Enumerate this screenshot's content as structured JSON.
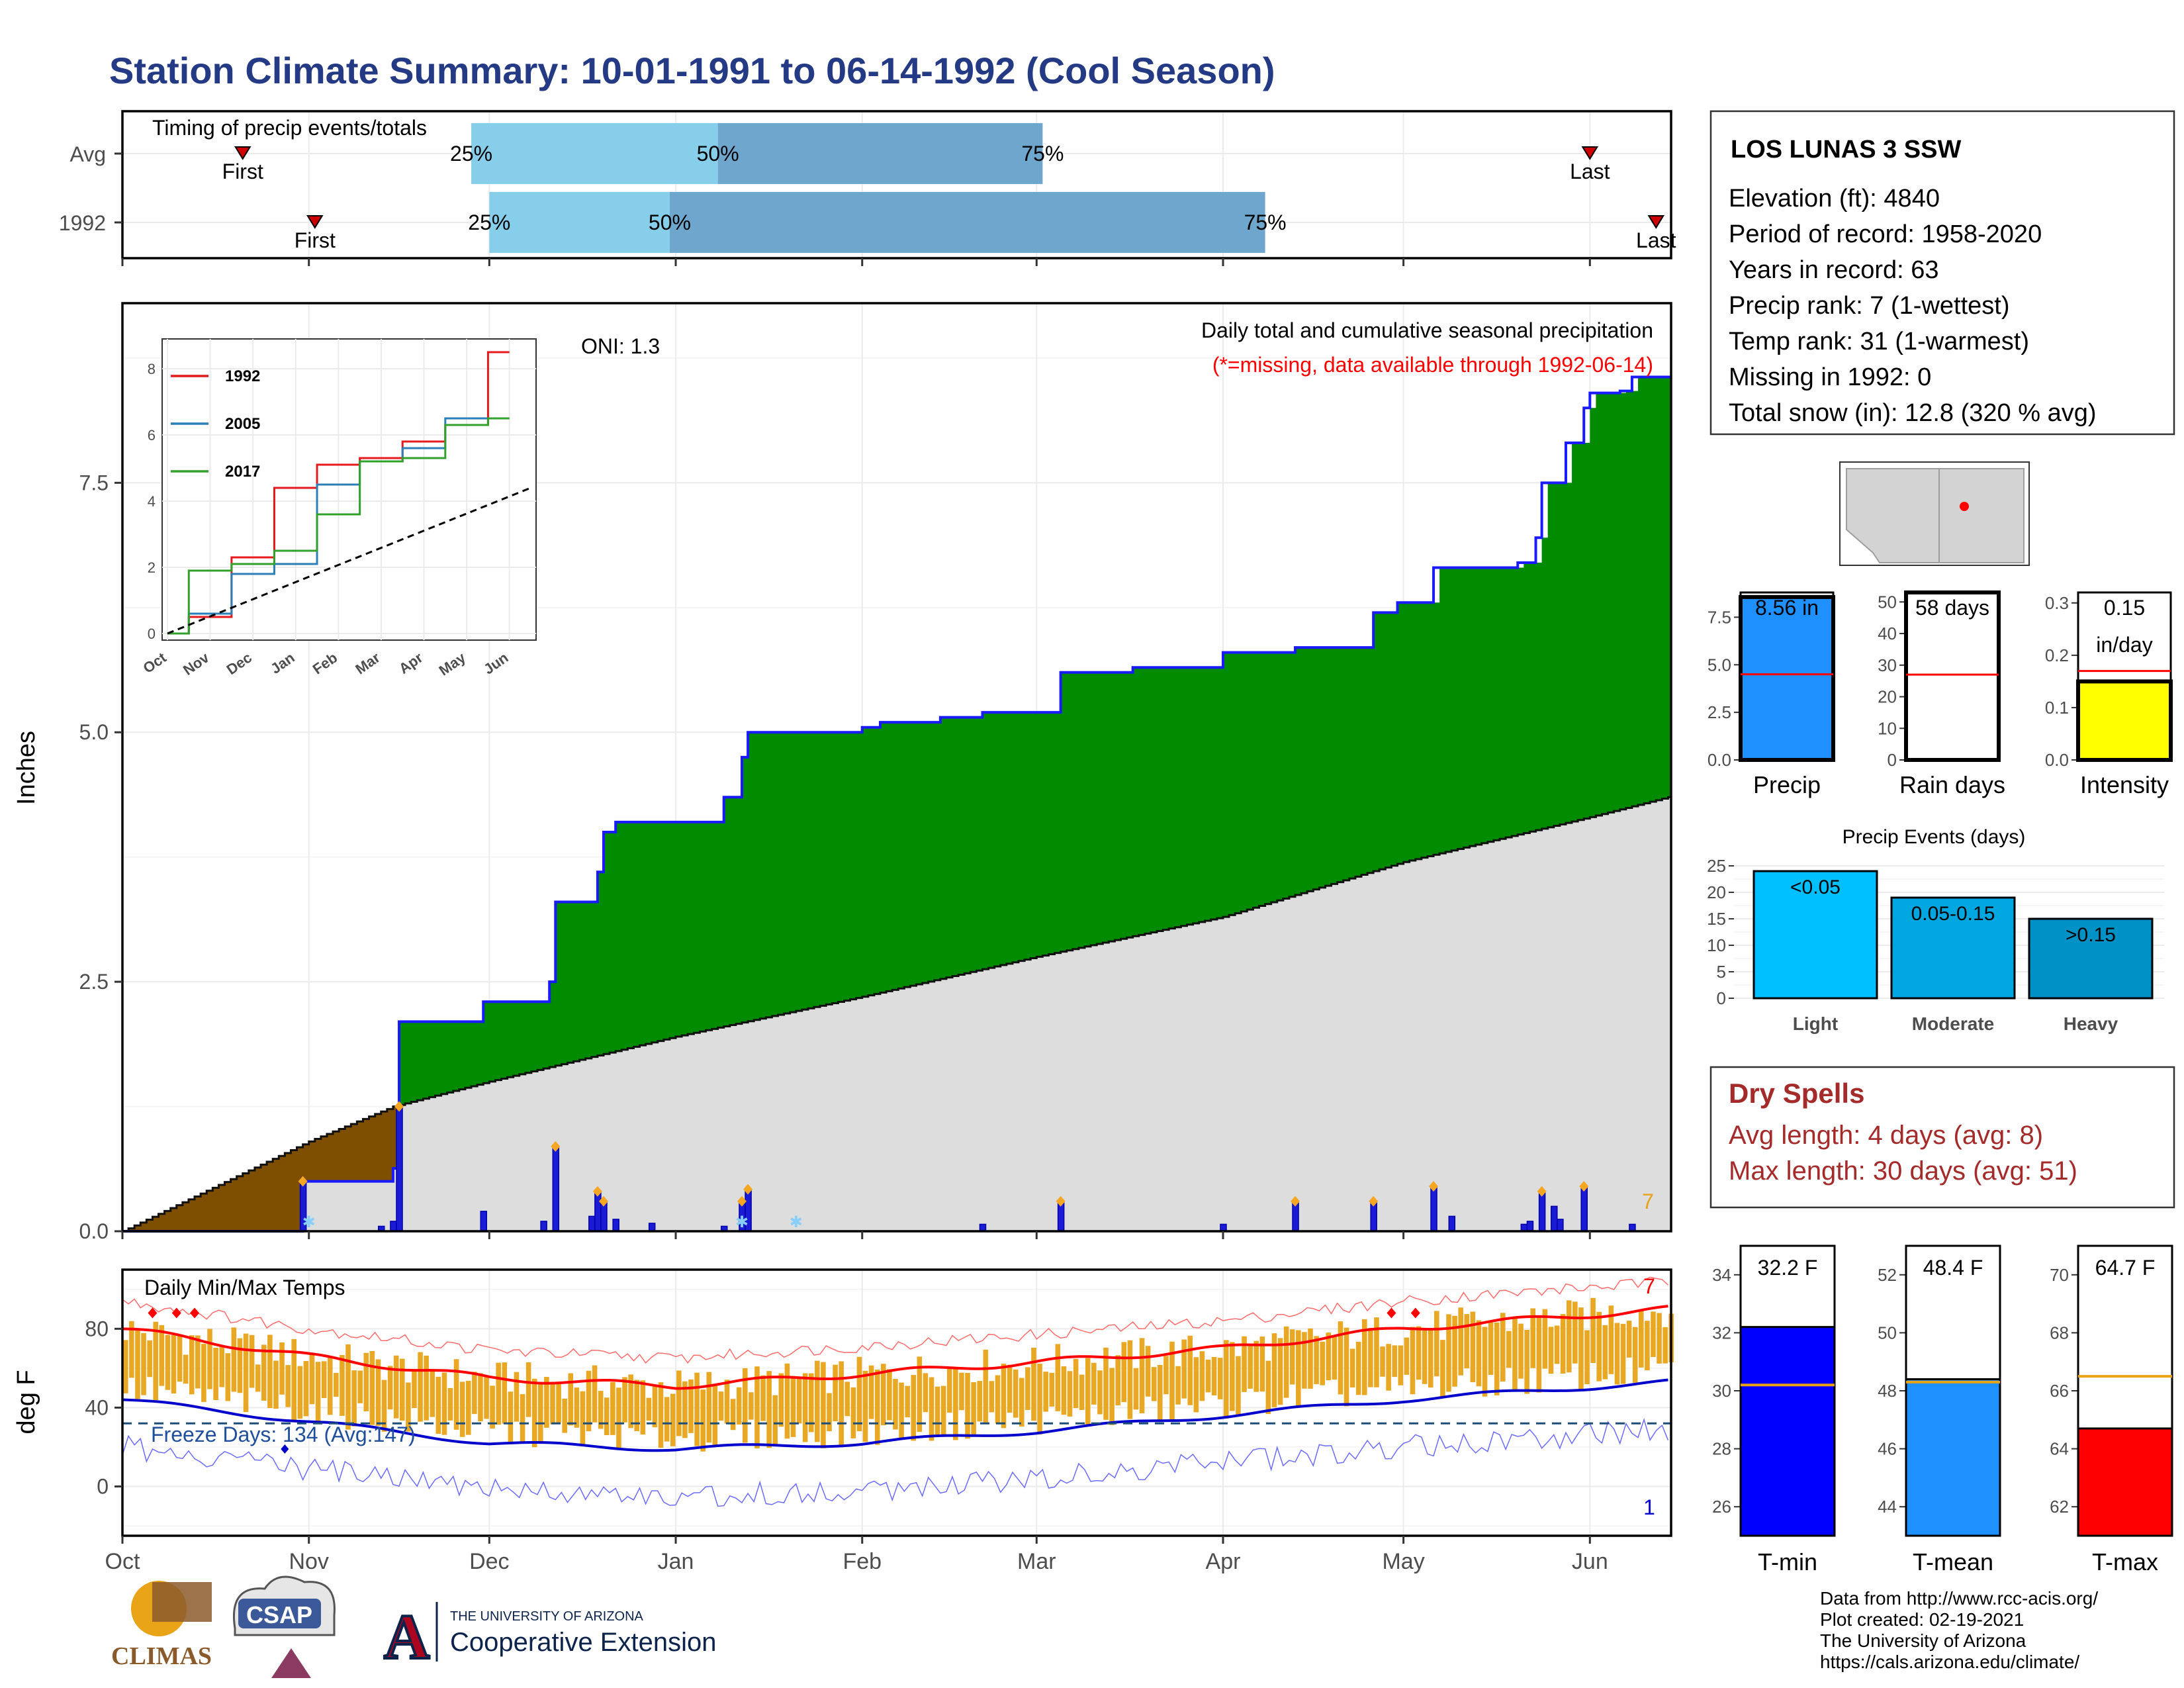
{
  "title": "Station Climate Summary: 10-01-1991 to 06-14-1992 (Cool Season)",
  "colors": {
    "title": "#253a85",
    "green": "#008b00",
    "brown": "#7f4f00",
    "grey": "#dddddd",
    "blue_bar": "#1b1bd6",
    "pale_blue": "#87ceeb",
    "mid_blue": "#6ea6cd",
    "orange": "#e8a317",
    "red": "#ff0000",
    "dry_text": "#a52a2a"
  },
  "timing": {
    "label": "Timing of precip events/totals",
    "rows": [
      {
        "label": "Avg",
        "first": "First",
        "last": "Last",
        "q25": "25%",
        "q50": "50%",
        "q75": "75%"
      },
      {
        "label": "1992",
        "first": "First",
        "last": "Last",
        "q25": "25%",
        "q50": "50%",
        "q75": "75%"
      }
    ]
  },
  "precip_panel": {
    "ylabel": "Inches",
    "oni": "ONI: 1.3",
    "heading": "Daily total and cumulative seasonal precipitation",
    "missing_note": "(*=missing, data available through 1992-06-14)",
    "corner_count": "7",
    "y_ticks": [
      "0.0",
      "2.5",
      "5.0",
      "7.5"
    ]
  },
  "inset": {
    "y_ticks": [
      "0",
      "2",
      "4",
      "6",
      "8"
    ],
    "x_ticks": [
      "Oct",
      "Nov",
      "Dec",
      "Jan",
      "Feb",
      "Mar",
      "Apr",
      "May",
      "Jun"
    ],
    "legend": [
      "1992",
      "2005",
      "2017"
    ]
  },
  "temp_panel": {
    "ylabel": "deg F",
    "label": "Daily Min/Max Temps",
    "freeze": "Freeze Days: 134 (Avg:147)",
    "corner_top": "7",
    "corner_bottom": "1",
    "y_ticks": [
      "0",
      "40",
      "80"
    ]
  },
  "x_months": [
    "Oct",
    "Nov",
    "Dec",
    "Jan",
    "Feb",
    "Mar",
    "Apr",
    "May",
    "Jun"
  ],
  "station": {
    "name": "LOS LUNAS 3 SSW",
    "lines": [
      "Elevation (ft): 4840",
      "Period of record: 1958-2020",
      "Years in record: 63",
      "Precip rank: 7 (1-wettest)",
      "Temp rank: 31 (1-warmest)",
      "Missing in 1992: 0",
      "Total snow (in): 12.8 (320 % avg)"
    ]
  },
  "summary_bars": {
    "precip": {
      "label": "Precip",
      "value_text": "8.56 in",
      "ticks": [
        "0.0",
        "2.5",
        "5.0",
        "7.5"
      ]
    },
    "rain_days": {
      "label": "Rain days",
      "value_text": "58 days",
      "ticks": [
        "0",
        "10",
        "20",
        "30",
        "40",
        "50"
      ]
    },
    "intensity": {
      "label": "Intensity",
      "value_text_1": "0.15",
      "value_text_2": "in/day",
      "ticks": [
        "0.0",
        "0.1",
        "0.2",
        "0.3"
      ]
    }
  },
  "events": {
    "title": "Precip Events (days)",
    "ticks": [
      "0",
      "5",
      "10",
      "15",
      "20",
      "25"
    ],
    "bars": [
      {
        "category": "Light",
        "label": "<0.05"
      },
      {
        "category": "Moderate",
        "label": "0.05-0.15"
      },
      {
        "category": "Heavy",
        "label": ">0.15"
      }
    ]
  },
  "dry_spells": {
    "title": "Dry Spells",
    "avg": "Avg length: 4 days (avg: 8)",
    "max": "Max length: 30 days (avg: 51)"
  },
  "temp_bars": {
    "tmin": {
      "label": "T-min",
      "value_text": "32.2 F",
      "ticks": [
        "26",
        "28",
        "30",
        "32",
        "34"
      ]
    },
    "tmean": {
      "label": "T-mean",
      "value_text": "48.4 F",
      "ticks": [
        "44",
        "46",
        "48",
        "50",
        "52"
      ]
    },
    "tmax": {
      "label": "T-max",
      "value_text": "64.7 F",
      "ticks": [
        "62",
        "64",
        "66",
        "68",
        "70"
      ]
    }
  },
  "footer": {
    "lines": [
      "Data from http://www.rcc-acis.org/",
      "Plot created: 02-19-2021",
      "The University of Arizona",
      "https://cals.arizona.edu/climate/"
    ],
    "logo_climas": "CLIMAS",
    "logo_csap": "CSAP",
    "logo_ua_small": "THE UNIVERSITY OF ARIZONA",
    "logo_ua_big": "Cooperative Extension"
  },
  "chart_data": [
    {
      "type": "bar",
      "title": "Timing of precip events/totals",
      "categories": [
        "Avg",
        "1992"
      ],
      "series": [
        {
          "name": "First",
          "values": [
            "1991-10-21",
            "1991-11-02"
          ]
        },
        {
          "name": "25%",
          "values": [
            "1991-11-28",
            "1991-12-01"
          ]
        },
        {
          "name": "50%",
          "values": [
            "1992-01-08",
            "1991-12-31"
          ]
        },
        {
          "name": "75%",
          "values": [
            "1992-03-02",
            "1992-04-08"
          ]
        },
        {
          "name": "Last",
          "values": [
            "1992-06-01",
            "1992-06-12"
          ]
        }
      ]
    },
    {
      "type": "area",
      "title": "Daily total and cumulative seasonal precipitation",
      "ylabel": "Inches",
      "ylim": [
        0,
        9.3
      ],
      "x_start": "1991-10-01",
      "x_end": "1992-06-14",
      "cumulative_1992": [
        [
          "1991-10-01",
          0
        ],
        [
          "1991-10-31",
          0.5
        ],
        [
          "1991-11-15",
          0.63
        ],
        [
          "1991-11-16",
          2.1
        ],
        [
          "1991-11-30",
          2.3
        ],
        [
          "1991-12-11",
          2.5
        ],
        [
          "1991-12-12",
          3.3
        ],
        [
          "1991-12-19",
          3.6
        ],
        [
          "1991-12-20",
          4.0
        ],
        [
          "1991-12-22",
          4.1
        ],
        [
          "1992-01-09",
          4.35
        ],
        [
          "1992-01-12",
          4.75
        ],
        [
          "1992-01-13",
          5.0
        ],
        [
          "1992-02-01",
          5.05
        ],
        [
          "1992-02-04",
          5.1
        ],
        [
          "1992-02-14",
          5.15
        ],
        [
          "1992-02-21",
          5.2
        ],
        [
          "1992-03-05",
          5.6
        ],
        [
          "1992-03-17",
          5.65
        ],
        [
          "1992-04-01",
          5.8
        ],
        [
          "1992-04-13",
          5.85
        ],
        [
          "1992-04-26",
          6.2
        ],
        [
          "1992-04-30",
          6.3
        ],
        [
          "1992-05-06",
          6.65
        ],
        [
          "1992-05-20",
          6.7
        ],
        [
          "1992-05-23",
          6.95
        ],
        [
          "1992-05-24",
          7.5
        ],
        [
          "1992-05-28",
          7.9
        ],
        [
          "1992-05-31",
          8.25
        ],
        [
          "1992-06-01",
          8.4
        ],
        [
          "1992-06-06",
          8.42
        ],
        [
          "1992-06-08",
          8.56
        ],
        [
          "1992-06-14",
          8.56
        ]
      ],
      "average_cumulative": [
        [
          "1991-10-01",
          0
        ],
        [
          "1991-11-01",
          0.9
        ],
        [
          "1991-11-15",
          1.25
        ],
        [
          "1991-12-01",
          1.5
        ],
        [
          "1992-01-01",
          1.95
        ],
        [
          "1992-02-01",
          2.35
        ],
        [
          "1992-03-01",
          2.75
        ],
        [
          "1992-04-01",
          3.15
        ],
        [
          "1992-05-01",
          3.7
        ],
        [
          "1992-06-01",
          4.15
        ],
        [
          "1992-06-14",
          4.35
        ]
      ],
      "daily_precip": [
        [
          "1991-10-31",
          0.5
        ],
        [
          "1991-11-13",
          0.05
        ],
        [
          "1991-11-15",
          0.1
        ],
        [
          "1991-11-16",
          1.25
        ],
        [
          "1991-11-30",
          0.2
        ],
        [
          "1991-12-10",
          0.1
        ],
        [
          "1991-12-12",
          0.85
        ],
        [
          "1991-12-18",
          0.15
        ],
        [
          "1991-12-19",
          0.4
        ],
        [
          "1991-12-20",
          0.3
        ],
        [
          "1991-12-22",
          0.12
        ],
        [
          "1991-12-28",
          0.08
        ],
        [
          "1992-01-09",
          0.05
        ],
        [
          "1992-01-12",
          0.3
        ],
        [
          "1992-01-13",
          0.42
        ],
        [
          "1992-02-21",
          0.07
        ],
        [
          "1992-03-05",
          0.3
        ],
        [
          "1992-04-01",
          0.07
        ],
        [
          "1992-04-13",
          0.3
        ],
        [
          "1992-04-26",
          0.3
        ],
        [
          "1992-05-06",
          0.45
        ],
        [
          "1992-05-09",
          0.15
        ],
        [
          "1992-05-21",
          0.07
        ],
        [
          "1992-05-22",
          0.1
        ],
        [
          "1992-05-24",
          0.4
        ],
        [
          "1992-05-26",
          0.25
        ],
        [
          "1992-05-27",
          0.12
        ],
        [
          "1992-05-31",
          0.45
        ],
        [
          "1992-06-08",
          0.07
        ]
      ]
    },
    {
      "type": "line",
      "title": "",
      "xlabel": "",
      "ylabel": "",
      "ylim": [
        0,
        8.5
      ],
      "categories": [
        "Oct",
        "Nov",
        "Dec",
        "Jan",
        "Feb",
        "Mar",
        "Apr",
        "May",
        "Jun"
      ],
      "series": [
        {
          "name": "1992",
          "values": [
            0,
            0.5,
            2.3,
            4.4,
            5.1,
            5.3,
            5.8,
            6.3,
            8.5
          ]
        },
        {
          "name": "2005",
          "values": [
            0,
            0.6,
            1.8,
            2.1,
            4.5,
            5.2,
            5.6,
            6.5,
            6.5
          ]
        },
        {
          "name": "2017",
          "values": [
            0,
            1.9,
            2.1,
            2.5,
            3.6,
            5.2,
            5.3,
            6.3,
            6.5
          ]
        }
      ]
    },
    {
      "type": "line",
      "title": "Daily Min/Max Temps",
      "ylabel": "deg F",
      "ylim": [
        -25,
        110
      ],
      "freeze_line": 32,
      "series": [
        {
          "name": "avg_max",
          "values": [
            [
              "1991-10-01",
              80
            ],
            [
              "1991-11-01",
              66
            ],
            [
              "1991-12-01",
              55
            ],
            [
              "1992-01-01",
              51
            ],
            [
              "1992-02-01",
              57
            ],
            [
              "1992-03-01",
              63
            ],
            [
              "1992-04-01",
              70
            ],
            [
              "1992-05-01",
              80
            ],
            [
              "1992-06-14",
              90
            ]
          ]
        },
        {
          "name": "avg_min",
          "values": [
            [
              "1991-10-01",
              44
            ],
            [
              "1991-11-01",
              33
            ],
            [
              "1991-12-01",
              22
            ],
            [
              "1992-01-01",
              19
            ],
            [
              "1992-02-01",
              22
            ],
            [
              "1992-03-01",
              28
            ],
            [
              "1992-04-01",
              36
            ],
            [
              "1992-05-01",
              44
            ],
            [
              "1992-06-14",
              53
            ]
          ]
        }
      ]
    },
    {
      "type": "bar",
      "title": "",
      "categories": [
        "Precip",
        "Rain days",
        "Intensity"
      ],
      "values": [
        8.56,
        58,
        0.15
      ],
      "averages": [
        4.5,
        27,
        0.17
      ]
    },
    {
      "type": "bar",
      "title": "Precip Events (days)",
      "categories": [
        "Light",
        "Moderate",
        "Heavy"
      ],
      "labels": [
        "<0.05",
        "0.05-0.15",
        ">0.15"
      ],
      "values": [
        24,
        19,
        15
      ],
      "ylim": [
        0,
        25
      ]
    },
    {
      "type": "bar",
      "title": "",
      "categories": [
        "T-min",
        "T-mean",
        "T-max"
      ],
      "values": [
        32.2,
        48.4,
        64.7
      ],
      "averages": [
        30.2,
        48.3,
        66.5
      ]
    }
  ]
}
